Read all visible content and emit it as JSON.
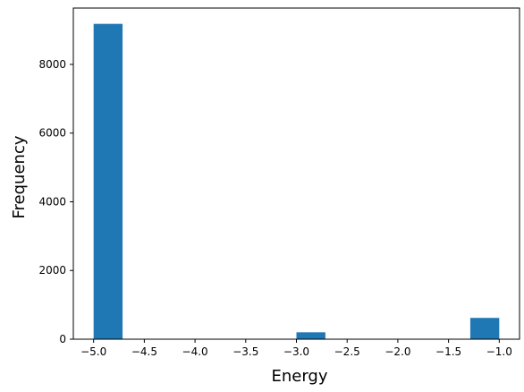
{
  "chart_data": {
    "type": "bar",
    "title": "",
    "xlabel": "Energy",
    "ylabel": "Frequency",
    "xlim": [
      -5.2,
      -0.8
    ],
    "ylim": [
      0,
      9640
    ],
    "grid": false,
    "bar_color": "#1f77b4",
    "bin_width": 0.2857,
    "bars": [
      {
        "x_start": -5.0,
        "value": 9180
      },
      {
        "x_start": -3.0,
        "value": 200
      },
      {
        "x_start": -1.2857,
        "value": 620
      }
    ],
    "xticks": [
      {
        "value": -5.0,
        "label": "−5.0"
      },
      {
        "value": -4.5,
        "label": "−4.5"
      },
      {
        "value": -4.0,
        "label": "−4.0"
      },
      {
        "value": -3.5,
        "label": "−3.5"
      },
      {
        "value": -3.0,
        "label": "−3.0"
      },
      {
        "value": -2.5,
        "label": "−2.5"
      },
      {
        "value": -2.0,
        "label": "−2.0"
      },
      {
        "value": -1.5,
        "label": "−1.5"
      },
      {
        "value": -1.0,
        "label": "−1.0"
      }
    ],
    "yticks": [
      {
        "value": 0,
        "label": "0"
      },
      {
        "value": 2000,
        "label": "2000"
      },
      {
        "value": 4000,
        "label": "4000"
      },
      {
        "value": 6000,
        "label": "6000"
      },
      {
        "value": 8000,
        "label": "8000"
      }
    ]
  }
}
